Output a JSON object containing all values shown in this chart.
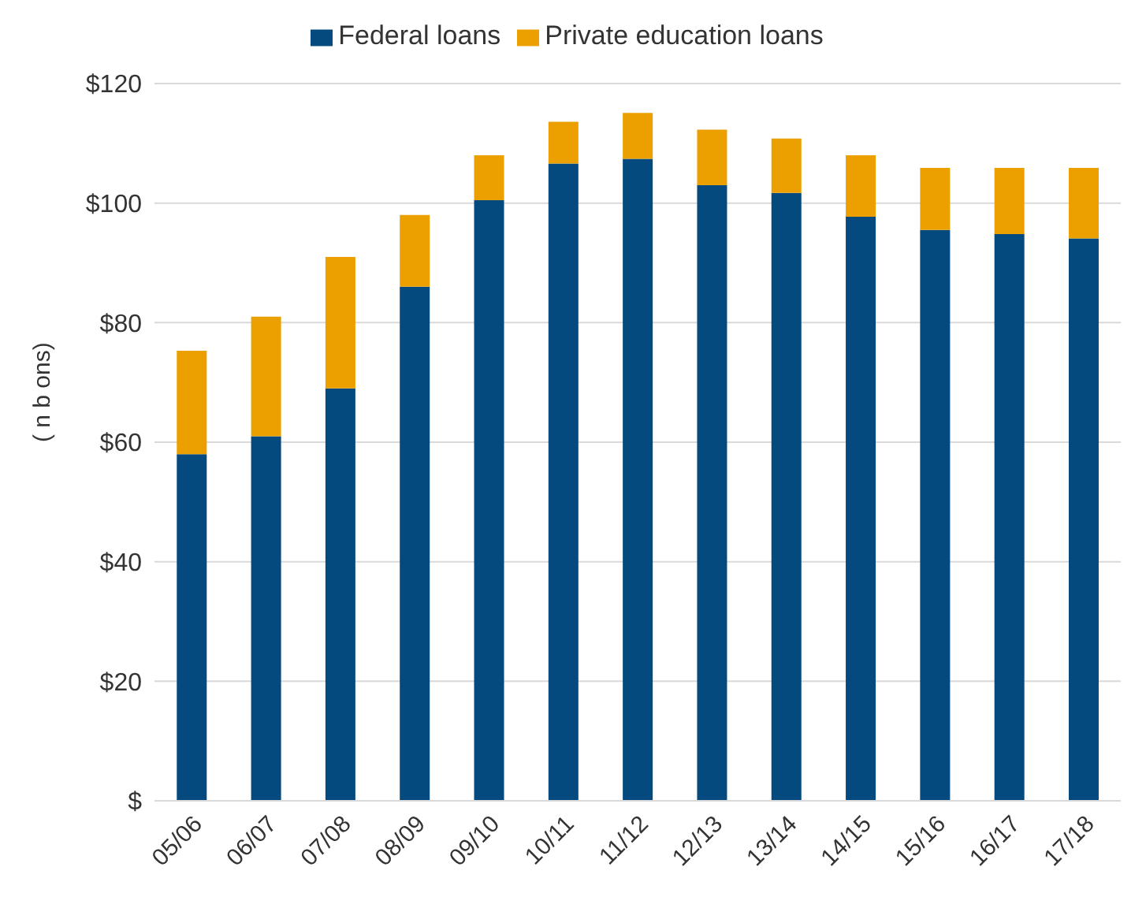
{
  "chart_data": {
    "type": "bar",
    "stacked": true,
    "ylabel": "( n b ons)",
    "categories": [
      "05/06",
      "06/07",
      "07/08",
      "08/09",
      "09/10",
      "10/11",
      "11/12",
      "12/13",
      "13/14",
      "14/15",
      "15/16",
      "16/17",
      "17/18"
    ],
    "series": [
      {
        "name": "Federal loans",
        "color": "#054a7e",
        "values": [
          58,
          61,
          69,
          86,
          100.5,
          106.6,
          107.4,
          103,
          101.7,
          97.7,
          95.5,
          94.8,
          94.1
        ]
      },
      {
        "name": "Private education loans",
        "color": "#eba000",
        "values": [
          17.3,
          20,
          22,
          12,
          7.5,
          7,
          7.7,
          9.3,
          9.1,
          10.3,
          10.4,
          11.1,
          11.8
        ]
      }
    ],
    "ylim": [
      0,
      120
    ],
    "yticks": [
      {
        "value": 0,
        "label": "$"
      },
      {
        "value": 20,
        "label": "$20"
      },
      {
        "value": 40,
        "label": "$40"
      },
      {
        "value": 60,
        "label": "$60"
      },
      {
        "value": 80,
        "label": "$80"
      },
      {
        "value": 100,
        "label": "$100"
      },
      {
        "value": 120,
        "label": "$120"
      }
    ],
    "grid": "y",
    "legend": "top"
  }
}
